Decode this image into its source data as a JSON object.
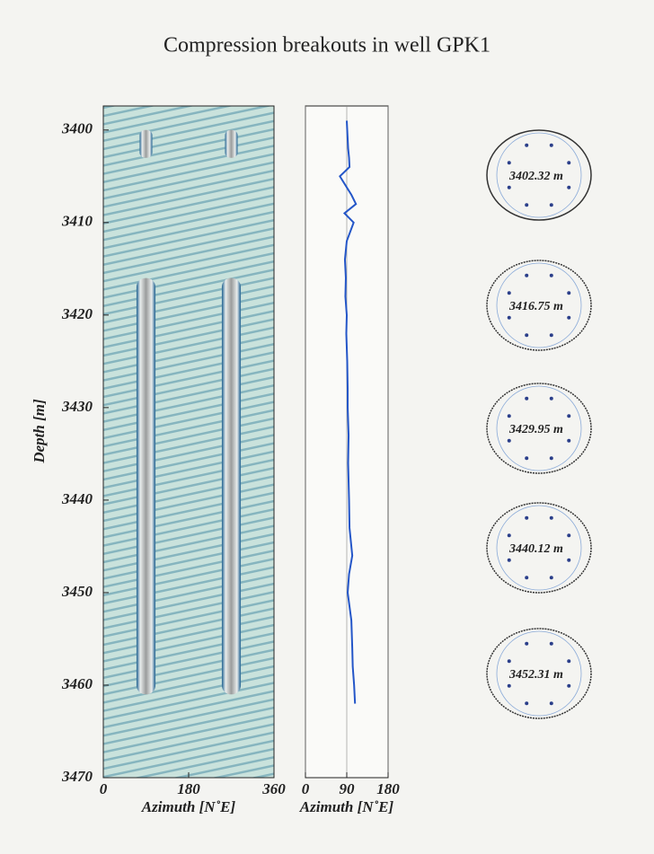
{
  "chart_data": [
    {
      "type": "image-log",
      "title": "Compression breakouts in well GPK1",
      "xlabel": "Azimuth [N˚E]",
      "ylabel": "Depth [m]",
      "xlim": [
        0,
        360
      ],
      "xticks": [
        0,
        180,
        360
      ],
      "ylim": [
        3470,
        3397.4
      ],
      "yticks": [
        3400,
        3410,
        3420,
        3430,
        3440,
        3450,
        3460,
        3470
      ],
      "breakout_azimuths": [
        90,
        270
      ],
      "color": "#1d5f8f"
    },
    {
      "type": "line",
      "xlabel": "Azimuth [N˚E]",
      "xlim": [
        0,
        180
      ],
      "xticks": [
        0,
        90,
        180
      ],
      "ylim": [
        3470,
        3397.4
      ],
      "series": [
        {
          "color": "#2456c8",
          "y": [
            3399,
            3400,
            3401,
            3402,
            3403,
            3404,
            3405,
            3407,
            3408,
            3409,
            3410,
            3412,
            3414,
            3416,
            3418,
            3420,
            3422,
            3425,
            3428,
            3430,
            3433,
            3436,
            3440,
            3443,
            3446,
            3448,
            3450,
            3453,
            3456,
            3458,
            3460,
            3462
          ],
          "x": [
            90,
            91,
            92,
            93,
            95,
            96,
            75,
            100,
            110,
            85,
            105,
            90,
            86,
            88,
            87,
            90,
            89,
            91,
            92,
            92,
            94,
            93,
            95,
            96,
            102,
            95,
            92,
            100,
            102,
            103,
            106,
            108
          ]
        }
      ]
    }
  ],
  "cross_sections": {
    "labels": [
      "3402.32 m",
      "3416.75 m",
      "3429.95 m",
      "3440.12 m",
      "3452.31 m"
    ]
  }
}
